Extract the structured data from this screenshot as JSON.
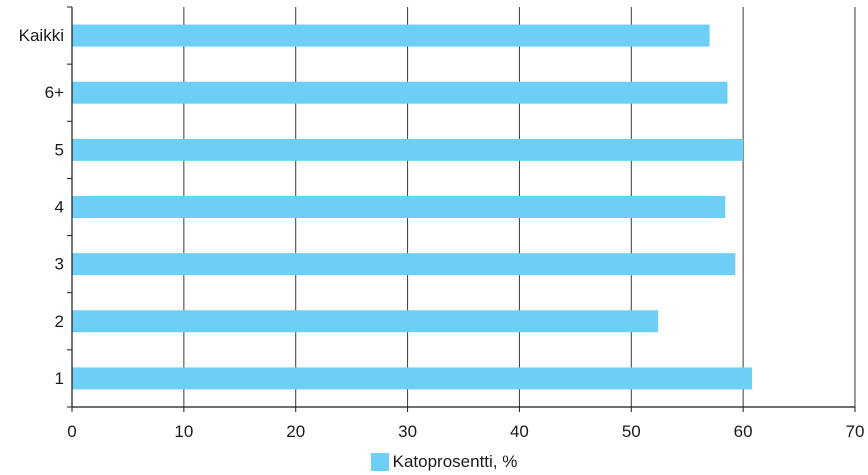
{
  "chart_data": {
    "type": "bar",
    "orientation": "horizontal",
    "categories": [
      "Kaikki",
      "6+",
      "5",
      "4",
      "3",
      "2",
      "1"
    ],
    "series": [
      {
        "name": "Katoprosentti, %",
        "color": "#6dcff6",
        "values": [
          57.0,
          58.6,
          60.0,
          58.4,
          59.3,
          52.4,
          60.8
        ]
      }
    ],
    "xlim": [
      0,
      70
    ],
    "xticks": [
      0,
      10,
      20,
      30,
      40,
      50,
      60,
      70
    ],
    "grid": "vertical",
    "legend_position": "bottom-center"
  }
}
